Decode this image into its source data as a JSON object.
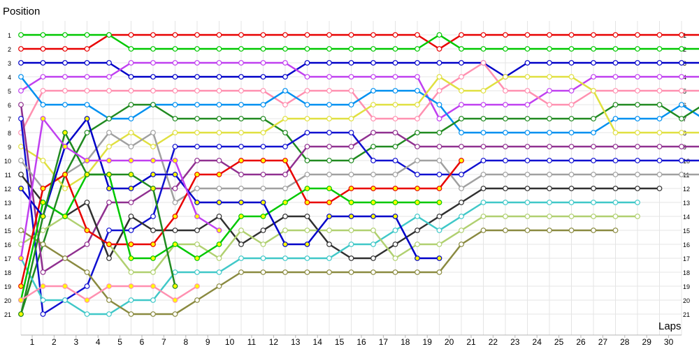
{
  "chart_data": {
    "type": "line",
    "ylabel": "Position",
    "xlabel": "Laps",
    "x_ticks": [
      1,
      2,
      3,
      4,
      5,
      6,
      7,
      8,
      9,
      10,
      11,
      12,
      13,
      14,
      15,
      16,
      17,
      18,
      19,
      20,
      21,
      22,
      23,
      24,
      25,
      26,
      27,
      28,
      29,
      30
    ],
    "y_ticks": [
      1,
      2,
      3,
      4,
      5,
      6,
      7,
      8,
      9,
      10,
      11,
      12,
      13,
      14,
      15,
      16,
      17,
      18,
      19,
      20,
      21
    ],
    "grid": true,
    "series": [
      {
        "color": "#e80000",
        "marker": "white",
        "start": 0,
        "values": [
          2,
          2,
          2,
          2,
          1,
          1,
          1,
          1,
          1,
          1,
          1,
          1,
          1,
          1,
          1,
          1,
          1,
          1,
          1,
          2,
          1,
          1,
          1,
          1,
          1,
          1,
          1,
          1,
          1,
          1,
          1,
          1
        ]
      },
      {
        "color": "#00c800",
        "marker": "white",
        "start": 0,
        "values": [
          1,
          1,
          1,
          1,
          1,
          2,
          2,
          2,
          2,
          2,
          2,
          2,
          2,
          2,
          2,
          2,
          2,
          2,
          2,
          1,
          2,
          2,
          2,
          2,
          2,
          2,
          2,
          2,
          2,
          2,
          2,
          2
        ]
      },
      {
        "color": "#0000c8",
        "marker": "white",
        "start": 0,
        "values": [
          3,
          3,
          3,
          3,
          3,
          4,
          4,
          4,
          4,
          4,
          4,
          4,
          4,
          3,
          3,
          3,
          3,
          3,
          3,
          3,
          3,
          3,
          4,
          3,
          3,
          3,
          3,
          3,
          3,
          3,
          3,
          3
        ]
      },
      {
        "color": "#c040f0",
        "marker": "white",
        "start": 0,
        "values": [
          5,
          4,
          4,
          4,
          4,
          3,
          3,
          3,
          3,
          3,
          3,
          3,
          3,
          4,
          4,
          4,
          4,
          4,
          4,
          7,
          6,
          6,
          6,
          6,
          5,
          5,
          4,
          4,
          4,
          4,
          4,
          4
        ]
      },
      {
        "color": "#ff90b0",
        "marker": "white",
        "start": 0,
        "values": [
          8,
          5,
          5,
          5,
          5,
          5,
          5,
          5,
          5,
          5,
          5,
          5,
          6,
          5,
          5,
          5,
          7,
          7,
          7,
          5,
          4,
          3,
          5,
          5,
          6,
          6,
          5,
          5,
          5,
          5,
          5,
          5
        ]
      },
      {
        "color": "#0090f0",
        "marker": "white",
        "start": 0,
        "values": [
          4,
          6,
          6,
          6,
          7,
          7,
          6,
          6,
          6,
          6,
          6,
          6,
          5,
          6,
          6,
          6,
          5,
          5,
          5,
          6,
          8,
          8,
          8,
          8,
          8,
          8,
          8,
          7,
          7,
          7,
          6,
          7
        ]
      },
      {
        "color": "#208a20",
        "marker": "white",
        "start": 0,
        "values": [
          21,
          16,
          11,
          8,
          7,
          6,
          6,
          7,
          7,
          7,
          7,
          7,
          8,
          10,
          10,
          10,
          9,
          9,
          8,
          8,
          7,
          7,
          7,
          7,
          7,
          7,
          7,
          6,
          6,
          6,
          7,
          6
        ]
      },
      {
        "color": "#e0e040",
        "marker": "white",
        "start": 0,
        "values": [
          9,
          10,
          12,
          11,
          9,
          8,
          9,
          8,
          8,
          8,
          8,
          8,
          7,
          7,
          7,
          7,
          6,
          6,
          6,
          4,
          5,
          5,
          4,
          4,
          4,
          4,
          5,
          8,
          8,
          8,
          8,
          8
        ]
      },
      {
        "color": "#903090",
        "marker": "white",
        "start": 0,
        "values": [
          6,
          18,
          17,
          16,
          13,
          13,
          12,
          12,
          10,
          10,
          11,
          11,
          11,
          9,
          9,
          9,
          8,
          8,
          9,
          9,
          9,
          9,
          9,
          9,
          9,
          9,
          9,
          9,
          9,
          9,
          9,
          9
        ]
      },
      {
        "color": "#1010d0",
        "marker": "white",
        "start": 0,
        "values": [
          7,
          21,
          20,
          19,
          15,
          15,
          14,
          9,
          9,
          9,
          9,
          9,
          9,
          8,
          8,
          8,
          10,
          10,
          11,
          11,
          11,
          10,
          10,
          10,
          10,
          10,
          10,
          10,
          10,
          10,
          10,
          10
        ]
      },
      {
        "color": "#a0a0a0",
        "marker": "white",
        "start": 0,
        "values": [
          10,
          12,
          11,
          10,
          8,
          9,
          8,
          13,
          12,
          12,
          12,
          12,
          12,
          11,
          11,
          11,
          11,
          11,
          10,
          10,
          12,
          11,
          11,
          11,
          11,
          11,
          11,
          11,
          11,
          11,
          11,
          11
        ]
      },
      {
        "color": "#303030",
        "marker": "white",
        "start": 0,
        "values": [
          11,
          13,
          14,
          13,
          17,
          14,
          15,
          15,
          15,
          14,
          16,
          15,
          14,
          14,
          16,
          17,
          17,
          16,
          15,
          14,
          13,
          12,
          12,
          12,
          12,
          12,
          12,
          12,
          12,
          12
        ]
      },
      {
        "color": "#40c8c8",
        "marker": "white",
        "start": 0,
        "values": [
          17,
          20,
          20,
          21,
          21,
          20,
          20,
          18,
          18,
          18,
          17,
          17,
          17,
          17,
          17,
          16,
          16,
          15,
          14,
          15,
          14,
          13,
          13,
          13,
          13,
          13,
          13,
          13,
          13
        ]
      },
      {
        "color": "#b0d070",
        "marker": "white",
        "start": 0,
        "values": [
          16,
          15,
          14,
          15,
          16,
          18,
          18,
          16,
          16,
          17,
          15,
          16,
          15,
          15,
          15,
          15,
          15,
          17,
          16,
          16,
          15,
          14,
          14,
          14,
          14,
          14,
          14,
          14,
          14
        ]
      },
      {
        "color": "#8a8a40",
        "marker": "white",
        "start": 0,
        "values": [
          15,
          16,
          17,
          18,
          20,
          21,
          21,
          21,
          20,
          19,
          18,
          18,
          18,
          18,
          18,
          18,
          18,
          18,
          18,
          18,
          16,
          15,
          15,
          15,
          15,
          15,
          15,
          15
        ]
      },
      {
        "color": "#e80000",
        "marker": "yellow",
        "start": 0,
        "values": [
          19,
          12,
          11,
          15,
          16,
          16,
          16,
          14,
          11,
          11,
          10,
          10,
          10,
          13,
          13,
          12,
          12,
          12,
          12,
          12,
          10
        ]
      },
      {
        "color": "#00c800",
        "marker": "yellow",
        "start": 0,
        "values": [
          20,
          13,
          14,
          11,
          11,
          17,
          17,
          16,
          17,
          16,
          14,
          14,
          13,
          12,
          12,
          13,
          13,
          13,
          13,
          13
        ]
      },
      {
        "color": "#0000c8",
        "marker": "yellow",
        "start": 0,
        "values": [
          12,
          14,
          9,
          7,
          12,
          12,
          11,
          11,
          13,
          13,
          13,
          13,
          16,
          16,
          14,
          14,
          14,
          14,
          17,
          17
        ]
      },
      {
        "color": "#208a20",
        "marker": "yellow",
        "start": 0,
        "values": [
          21,
          14,
          8,
          11,
          11,
          11,
          12,
          19
        ]
      },
      {
        "color": "#ff90b0",
        "marker": "yellow",
        "start": 0,
        "values": [
          20,
          19,
          19,
          20,
          19,
          19,
          19,
          20,
          19
        ]
      },
      {
        "color": "#c040f0",
        "marker": "yellow",
        "start": 0,
        "values": [
          17,
          7,
          9,
          10,
          10,
          10,
          10,
          10,
          14,
          15
        ]
      }
    ]
  }
}
